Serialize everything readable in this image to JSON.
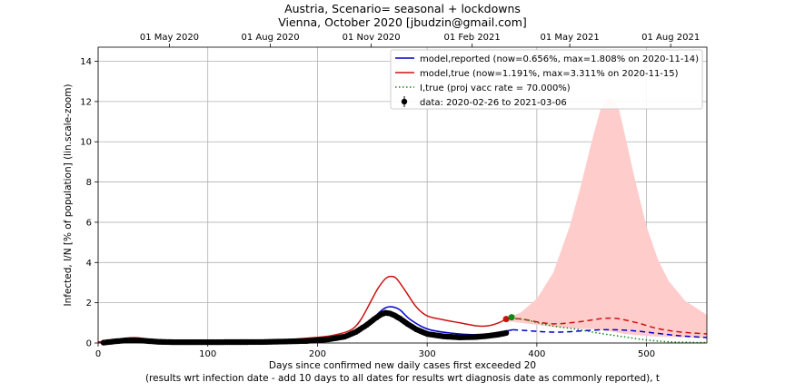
{
  "chart_data": {
    "type": "line",
    "title_line1": "Austria, Scenario= seasonal + lockdowns",
    "title_line2": "Vienna, October 2020 [jbudzin@gmail.com]",
    "xlabel_line1": "Days since confirmed new daily cases first exceeded 20",
    "xlabel_line2": "(results wrt infection date - add 10 days to all dates for results wrt diagnosis date as commonly reported), t",
    "ylabel": "Infected, I/N [% of population] (lin.scale-zoom)",
    "xlim": [
      0,
      555
    ],
    "ylim": [
      0,
      14.7
    ],
    "x_ticks": [
      0,
      100,
      200,
      300,
      400,
      500
    ],
    "y_ticks": [
      0,
      2,
      4,
      6,
      8,
      10,
      12,
      14
    ],
    "top_axis": {
      "labels": [
        "01 May 2020",
        "01 Aug 2020",
        "01 Nov 2020",
        "01 Feb 2021",
        "01 May 2021",
        "01 Aug 2021"
      ],
      "positions": [
        65,
        157,
        249,
        341,
        430,
        522
      ]
    },
    "grid": true,
    "legend_position": "top-right",
    "legend": [
      {
        "label": "model,reported (now=0.656%, max=1.808% on 2020-11-14)",
        "color": "#0000cc",
        "style": "solid"
      },
      {
        "label": "model,true (now=1.191%, max=3.311% on 2020-11-15)",
        "color": "#cc1111",
        "style": "solid"
      },
      {
        "label": "I,true (proj vacc rate = 70.000%)",
        "color": "#118811",
        "style": "dotted"
      },
      {
        "label": "data: 2020-02-26 to 2021-03-06",
        "color": "#000000",
        "style": "marker"
      }
    ],
    "series": [
      {
        "name": "model,reported",
        "color": "#0000cc",
        "x": [
          0,
          15,
          25,
          35,
          45,
          55,
          70,
          100,
          150,
          200,
          220,
          235,
          245,
          255,
          262,
          268,
          275,
          285,
          300,
          320,
          340,
          355,
          370,
          378
        ],
        "y": [
          0.03,
          0.1,
          0.17,
          0.18,
          0.13,
          0.08,
          0.05,
          0.05,
          0.07,
          0.15,
          0.25,
          0.45,
          0.85,
          1.45,
          1.75,
          1.8,
          1.65,
          1.15,
          0.7,
          0.5,
          0.42,
          0.45,
          0.58,
          0.66
        ]
      },
      {
        "name": "model,true",
        "color": "#cc1111",
        "x": [
          0,
          15,
          25,
          35,
          45,
          55,
          70,
          100,
          150,
          200,
          220,
          232,
          240,
          248,
          255,
          262,
          267,
          272,
          280,
          290,
          300,
          315,
          330,
          345,
          355,
          365,
          372
        ],
        "y": [
          0.05,
          0.15,
          0.24,
          0.26,
          0.2,
          0.12,
          0.07,
          0.07,
          0.1,
          0.28,
          0.45,
          0.7,
          1.2,
          2.0,
          2.7,
          3.2,
          3.31,
          3.2,
          2.6,
          1.8,
          1.35,
          1.15,
          1.0,
          0.85,
          0.85,
          1.0,
          1.19
        ]
      },
      {
        "name": "model,reported (projection)",
        "color": "#0000cc",
        "x": [
          378,
          395,
          410,
          425,
          440,
          455,
          470,
          490,
          510,
          530,
          555
        ],
        "y": [
          0.66,
          0.6,
          0.55,
          0.55,
          0.6,
          0.65,
          0.66,
          0.6,
          0.48,
          0.36,
          0.27
        ]
      },
      {
        "name": "model,true (projection)",
        "color": "#cc1111",
        "x": [
          372,
          385,
          400,
          415,
          430,
          445,
          460,
          470,
          480,
          495,
          510,
          530,
          555
        ],
        "y": [
          1.19,
          1.2,
          1.05,
          0.95,
          1.0,
          1.1,
          1.22,
          1.23,
          1.15,
          0.95,
          0.72,
          0.55,
          0.45
        ]
      },
      {
        "name": "I,true",
        "color": "#118811",
        "x": [
          375,
          390,
          405,
          420,
          435,
          450,
          465,
          480,
          500,
          520,
          540,
          555
        ],
        "y": [
          1.25,
          1.15,
          0.95,
          0.8,
          0.7,
          0.55,
          0.42,
          0.3,
          0.15,
          0.06,
          0.03,
          0.02
        ]
      },
      {
        "name": "data",
        "color": "#000000",
        "x": [
          5,
          15,
          25,
          35,
          45,
          55,
          70,
          100,
          150,
          190,
          210,
          225,
          235,
          245,
          252,
          258,
          262,
          266,
          270,
          275,
          282,
          290,
          300,
          315,
          330,
          345,
          355,
          365,
          372
        ],
        "y": [
          0.02,
          0.08,
          0.13,
          0.14,
          0.1,
          0.06,
          0.04,
          0.04,
          0.05,
          0.1,
          0.18,
          0.32,
          0.55,
          0.9,
          1.2,
          1.42,
          1.5,
          1.47,
          1.38,
          1.22,
          0.95,
          0.68,
          0.45,
          0.33,
          0.28,
          0.3,
          0.35,
          0.42,
          0.5
        ]
      }
    ],
    "band": {
      "name": "projection uncertainty",
      "color": "#ffcccc",
      "x": [
        372,
        385,
        400,
        415,
        430,
        440,
        450,
        458,
        465,
        470,
        475,
        480,
        490,
        500,
        510,
        520,
        535,
        555
      ],
      "upper": [
        1.25,
        1.5,
        2.2,
        3.5,
        5.8,
        7.8,
        10.0,
        11.6,
        12.2,
        12.1,
        11.6,
        10.4,
        8.0,
        5.8,
        4.2,
        3.1,
        2.1,
        1.4
      ],
      "lower": [
        1.1,
        1.0,
        0.9,
        0.8,
        0.75,
        0.7,
        0.7,
        0.65,
        0.6,
        0.55,
        0.5,
        0.45,
        0.4,
        0.35,
        0.32,
        0.3,
        0.28,
        0.25
      ]
    },
    "current_markers": [
      {
        "x": 372,
        "y": 1.19,
        "color": "#cc1111"
      },
      {
        "x": 377,
        "y": 1.28,
        "color": "#118811"
      }
    ]
  }
}
